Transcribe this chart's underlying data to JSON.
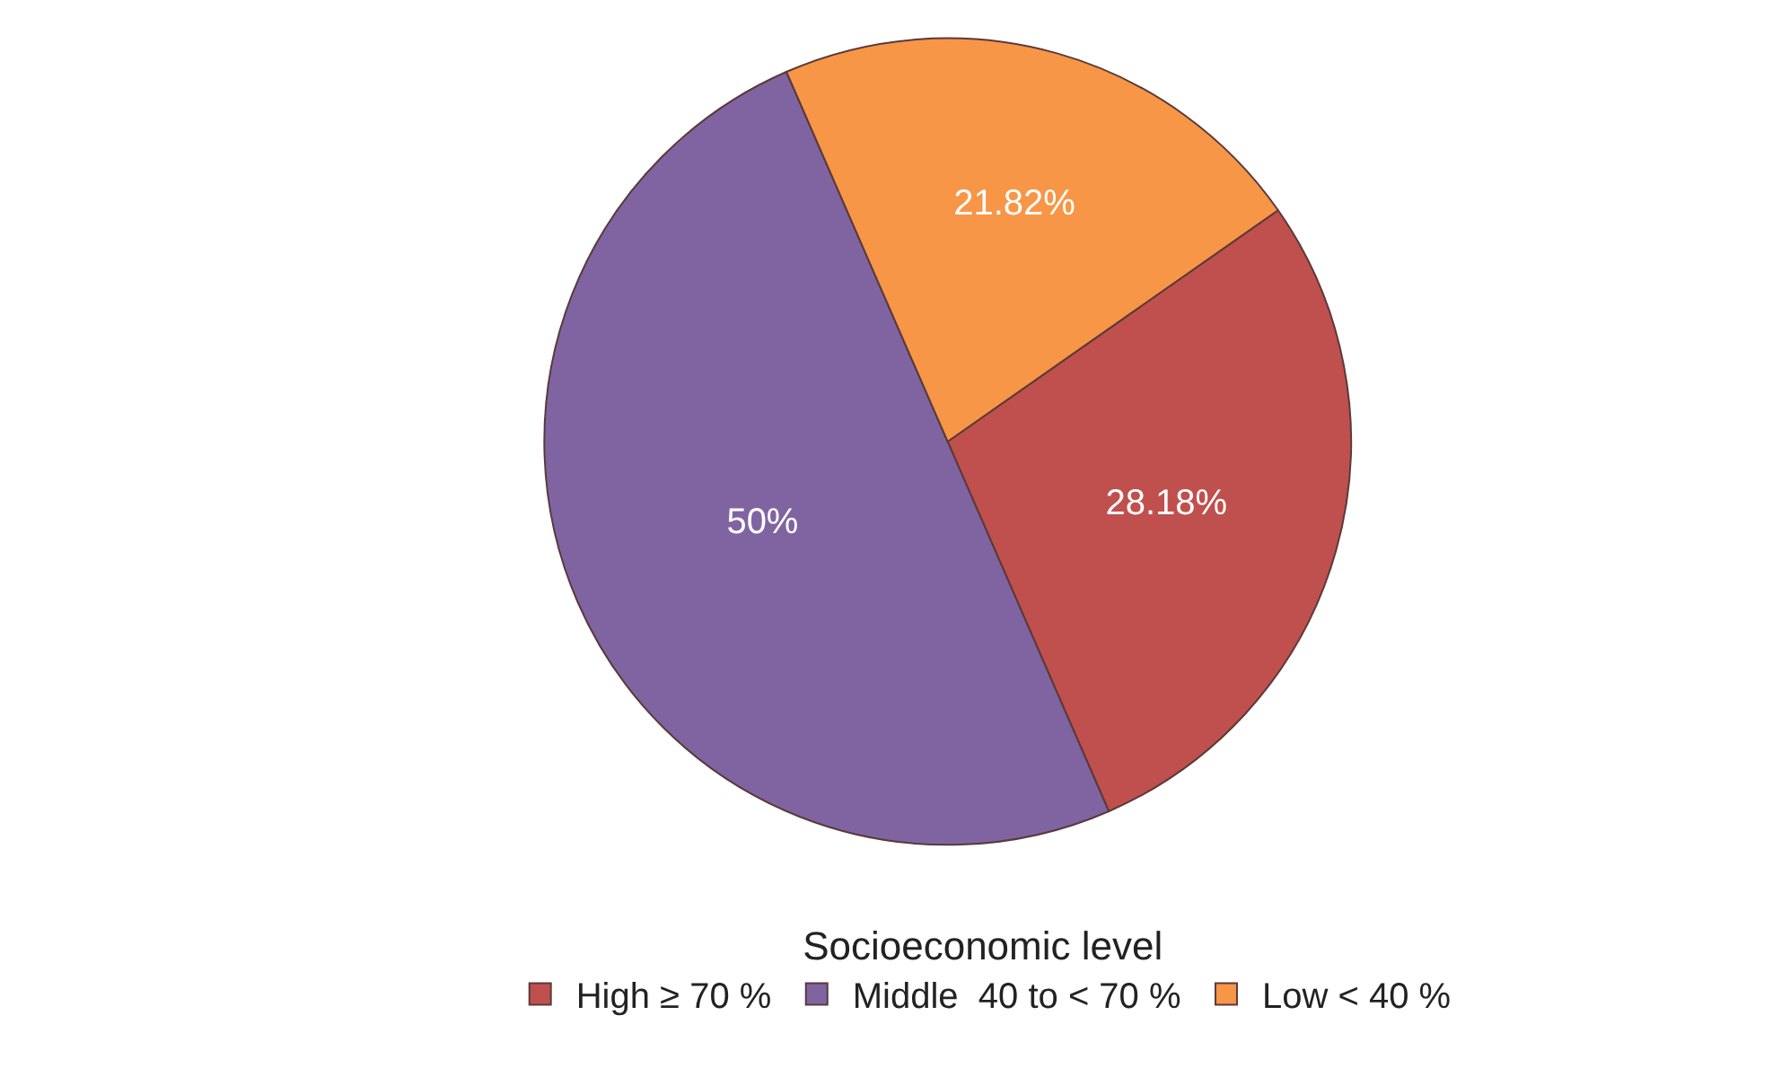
{
  "chart_data": {
    "type": "pie",
    "legend_title": "Socioeconomic level",
    "legend": "bottom",
    "categories": [
      "High ≥ 70 %",
      "Middle  40 to < 70 %",
      "Low < 40 %"
    ],
    "values": [
      28.18,
      50,
      21.82
    ],
    "value_labels": [
      "28.18%",
      "50%",
      "21.82%"
    ],
    "colors": [
      "#c0504d",
      "#8064a2",
      "#f79646"
    ]
  }
}
